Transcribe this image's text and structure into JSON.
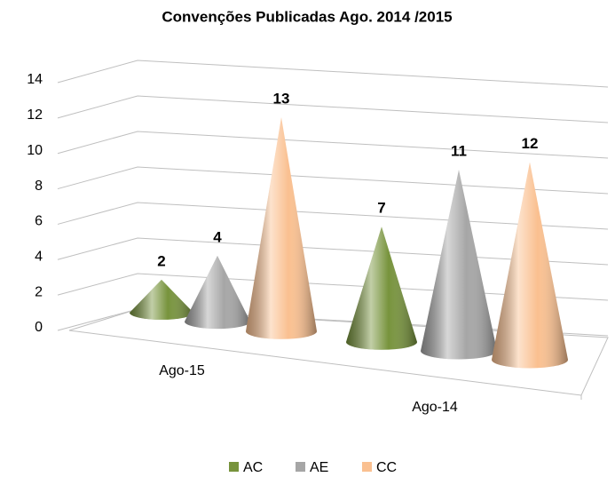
{
  "chart_data": {
    "type": "cone3d",
    "title": "Convenções Publicadas Ago. 2014 /2015",
    "categories": [
      "Ago-15",
      "Ago-14"
    ],
    "series": [
      {
        "name": "AC",
        "color": "#77933c",
        "values": [
          2,
          7
        ]
      },
      {
        "name": "AE",
        "color": "#a6a6a6",
        "values": [
          4,
          11
        ]
      },
      {
        "name": "CC",
        "color": "#fac090",
        "values": [
          13,
          12
        ]
      }
    ],
    "ylim": [
      0,
      14
    ],
    "yticks": [
      0,
      2,
      4,
      6,
      8,
      10,
      12,
      14
    ],
    "grid": true,
    "legend": "bottom"
  }
}
